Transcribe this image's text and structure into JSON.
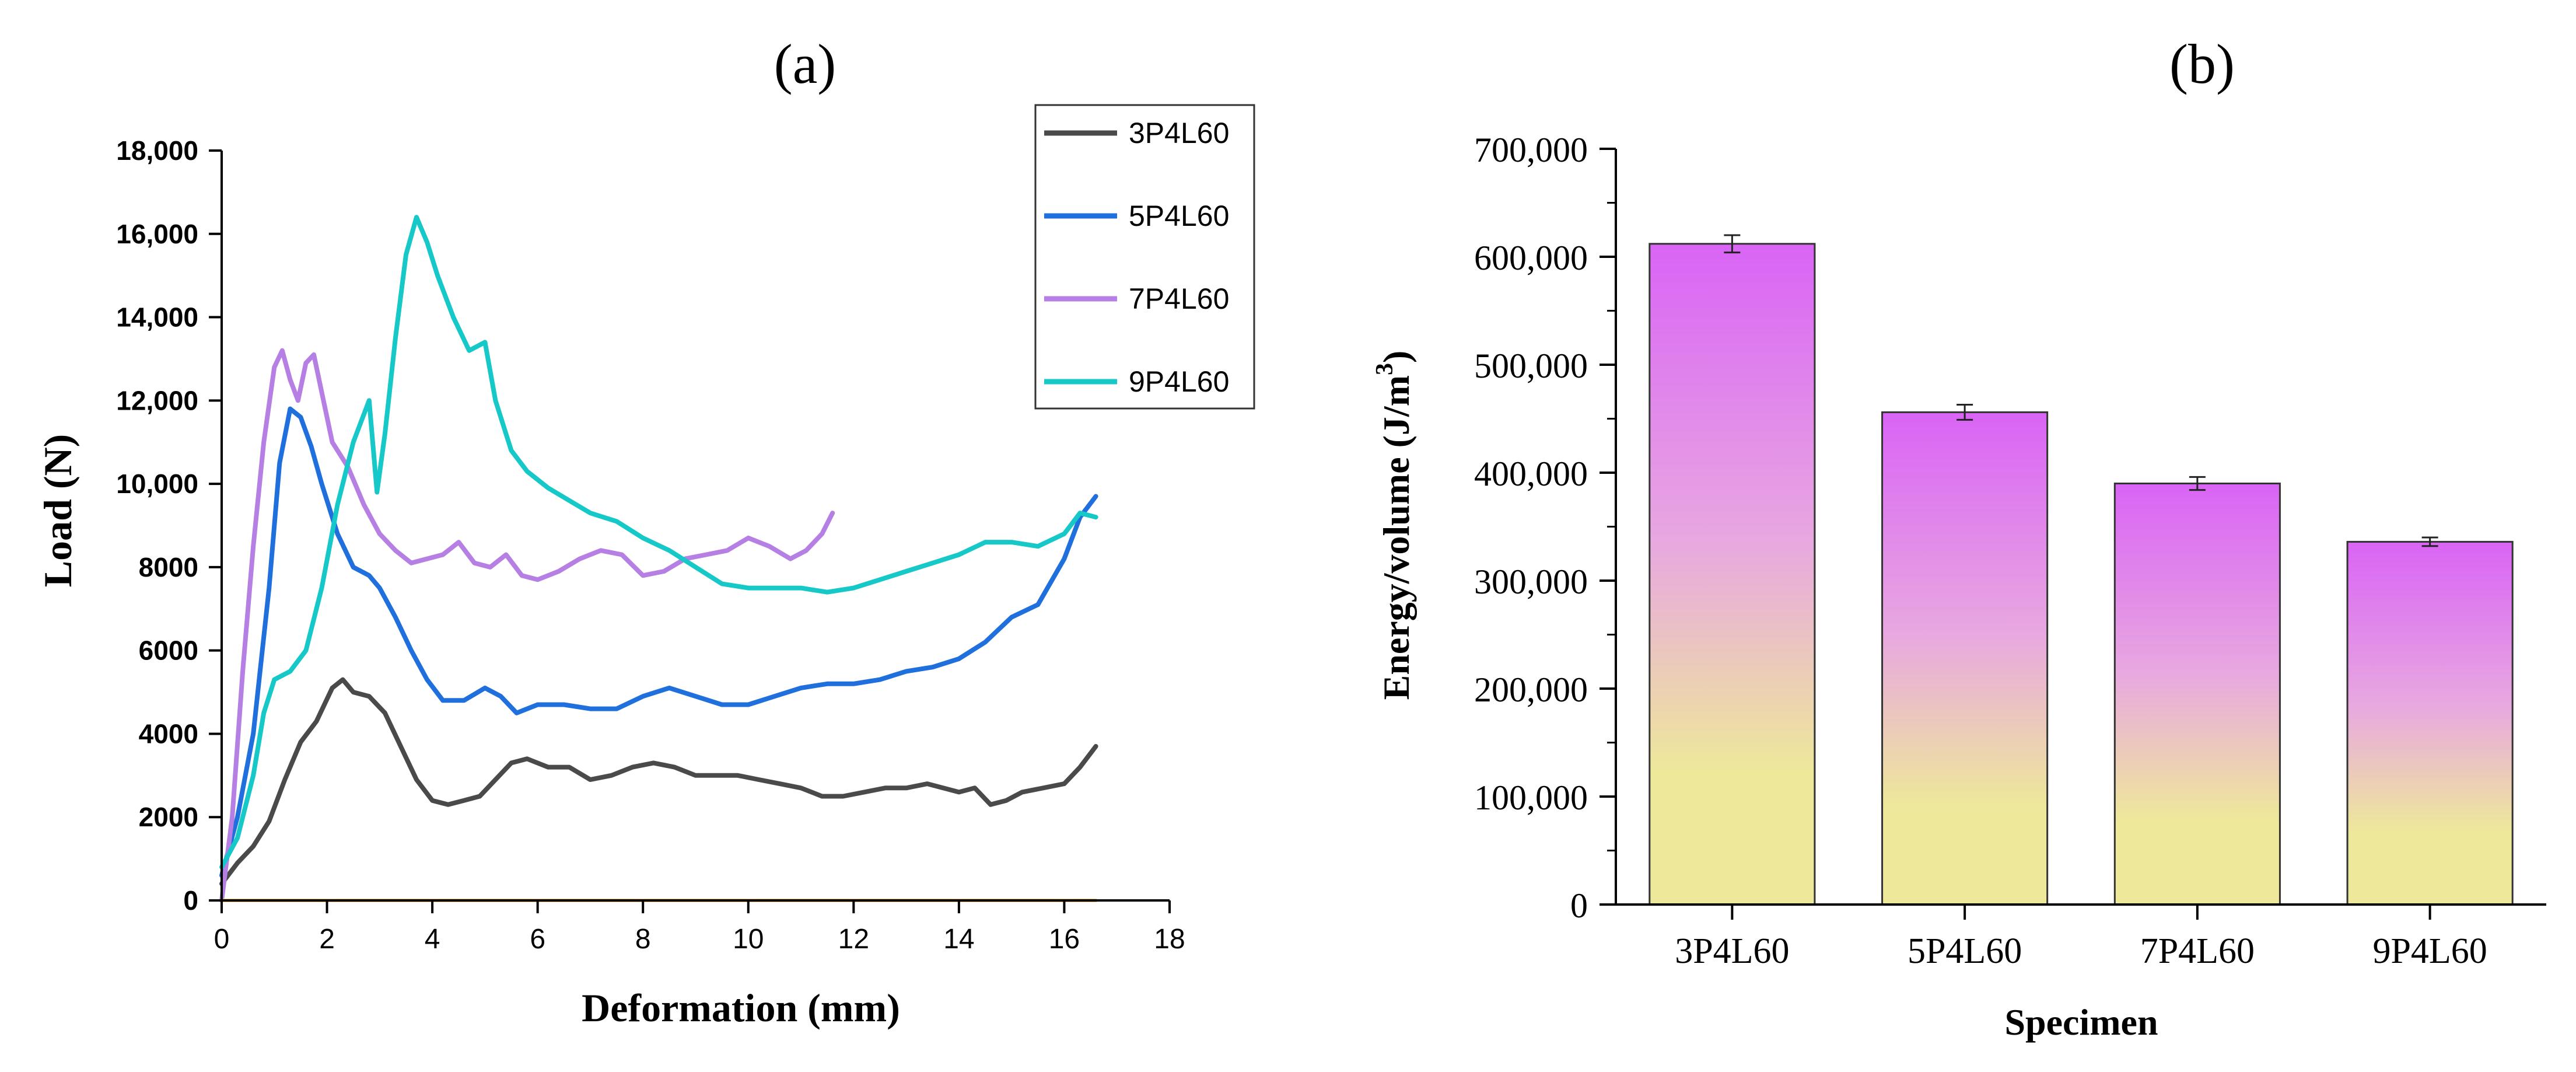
{
  "colors": {
    "3P4L60": "#4a4a4a",
    "5P4L60": "#1f6fdc",
    "7P4L60": "#b57fe3",
    "9P4L60": "#16c8c8",
    "baseline": "#e6b84a",
    "bar_top": "#d964f5",
    "bar_mid": "#e8a8e0",
    "bar_bottom": "#eee89a",
    "axis": "#000000"
  },
  "chart_data": [
    {
      "panel": "(a)",
      "type": "line",
      "xlabel": "Deformation (mm)",
      "ylabel": "Load (N)",
      "xlim": [
        0,
        18
      ],
      "ylim": [
        0,
        18000
      ],
      "x_ticks": [
        0,
        2,
        4,
        6,
        8,
        10,
        12,
        14,
        16,
        18
      ],
      "y_ticks": [
        0,
        2000,
        4000,
        6000,
        8000,
        10000,
        12000,
        14000,
        16000,
        18000
      ],
      "y_tick_labels": [
        "0",
        "2000",
        "4000",
        "6000",
        "8000",
        "10,000",
        "12,000",
        "14,000",
        "16,000",
        "18,000"
      ],
      "legend_position": "top-right",
      "series": [
        {
          "name": "3P4L60",
          "x": [
            0,
            0.3,
            0.6,
            0.9,
            1.2,
            1.5,
            1.8,
            2.1,
            2.3,
            2.5,
            2.8,
            3.1,
            3.4,
            3.7,
            4.0,
            4.3,
            4.6,
            4.9,
            5.2,
            5.5,
            5.8,
            6.2,
            6.6,
            7.0,
            7.4,
            7.8,
            8.2,
            8.6,
            9.0,
            9.4,
            9.8,
            10.2,
            10.6,
            11.0,
            11.4,
            11.8,
            12.2,
            12.6,
            13.0,
            13.4,
            13.7,
            14.0,
            14.3,
            14.6,
            14.9,
            15.2,
            15.6,
            16.0,
            16.3,
            16.6
          ],
          "y": [
            400,
            900,
            1300,
            1900,
            2900,
            3800,
            4300,
            5100,
            5300,
            5000,
            4900,
            4500,
            3700,
            2900,
            2400,
            2300,
            2400,
            2500,
            2900,
            3300,
            3400,
            3200,
            3200,
            2900,
            3000,
            3200,
            3300,
            3200,
            3000,
            3000,
            3000,
            2900,
            2800,
            2700,
            2500,
            2500,
            2600,
            2700,
            2700,
            2800,
            2700,
            2600,
            2700,
            2300,
            2400,
            2600,
            2700,
            2800,
            3200,
            3700
          ]
        },
        {
          "name": "5P4L60",
          "x": [
            0,
            0.3,
            0.6,
            0.9,
            1.1,
            1.3,
            1.5,
            1.7,
            1.9,
            2.2,
            2.5,
            2.8,
            3.0,
            3.3,
            3.6,
            3.9,
            4.2,
            4.6,
            5.0,
            5.3,
            5.6,
            6.0,
            6.5,
            7.0,
            7.5,
            8.0,
            8.5,
            9.0,
            9.5,
            10.0,
            10.5,
            11.0,
            11.5,
            12.0,
            12.5,
            13.0,
            13.5,
            14.0,
            14.5,
            15.0,
            15.5,
            16.0,
            16.3,
            16.6
          ],
          "y": [
            600,
            2000,
            4000,
            7500,
            10500,
            11800,
            11600,
            10900,
            10000,
            8800,
            8000,
            7800,
            7500,
            6800,
            6000,
            5300,
            4800,
            4800,
            5100,
            4900,
            4500,
            4700,
            4700,
            4600,
            4600,
            4900,
            5100,
            4900,
            4700,
            4700,
            4900,
            5100,
            5200,
            5200,
            5300,
            5500,
            5600,
            5800,
            6200,
            6800,
            7100,
            8200,
            9200,
            9700
          ]
        },
        {
          "name": "7P4L60",
          "x": [
            0,
            0.2,
            0.4,
            0.6,
            0.8,
            1.0,
            1.15,
            1.3,
            1.45,
            1.6,
            1.75,
            1.9,
            2.1,
            2.4,
            2.7,
            3.0,
            3.3,
            3.6,
            3.9,
            4.2,
            4.5,
            4.8,
            5.1,
            5.4,
            5.7,
            6.0,
            6.4,
            6.8,
            7.2,
            7.6,
            8.0,
            8.4,
            8.8,
            9.2,
            9.6,
            10.0,
            10.4,
            10.8,
            11.1,
            11.4,
            11.6
          ],
          "y": [
            0,
            2000,
            5500,
            8500,
            11000,
            12800,
            13200,
            12500,
            12000,
            12900,
            13100,
            12200,
            11000,
            10400,
            9500,
            8800,
            8400,
            8100,
            8200,
            8300,
            8600,
            8100,
            8000,
            8300,
            7800,
            7700,
            7900,
            8200,
            8400,
            8300,
            7800,
            7900,
            8200,
            8300,
            8400,
            8700,
            8500,
            8200,
            8400,
            8800,
            9300
          ]
        },
        {
          "name": "9P4L60",
          "x": [
            0,
            0.3,
            0.6,
            0.8,
            1.0,
            1.3,
            1.6,
            1.9,
            2.2,
            2.5,
            2.8,
            2.95,
            3.1,
            3.3,
            3.5,
            3.7,
            3.9,
            4.1,
            4.4,
            4.7,
            5.0,
            5.2,
            5.5,
            5.8,
            6.2,
            6.6,
            7.0,
            7.5,
            8.0,
            8.5,
            9.0,
            9.5,
            10.0,
            10.5,
            11.0,
            11.5,
            12.0,
            12.5,
            13.0,
            13.5,
            14.0,
            14.5,
            15.0,
            15.5,
            16.0,
            16.3,
            16.6
          ],
          "y": [
            800,
            1500,
            3000,
            4500,
            5300,
            5500,
            6000,
            7500,
            9500,
            11000,
            12000,
            9800,
            11200,
            13500,
            15500,
            16400,
            15800,
            15000,
            14000,
            13200,
            13400,
            12000,
            10800,
            10300,
            9900,
            9600,
            9300,
            9100,
            8700,
            8400,
            8000,
            7600,
            7500,
            7500,
            7500,
            7400,
            7500,
            7700,
            7900,
            8100,
            8300,
            8600,
            8600,
            8500,
            8800,
            9300,
            9200
          ]
        },
        {
          "name": "baseline",
          "x": [
            0,
            16.6
          ],
          "y": [
            0,
            0
          ]
        }
      ]
    },
    {
      "panel": "(b)",
      "type": "bar",
      "xlabel": "Specimen",
      "ylabel": "Energy/volume (J/m",
      "ylabel_sup": "3",
      "ylabel_close": ")",
      "ylim": [
        0,
        700000
      ],
      "y_ticks": [
        0,
        100000,
        200000,
        300000,
        400000,
        500000,
        600000,
        700000
      ],
      "y_tick_labels": [
        "0",
        "100,000",
        "200,000",
        "300,000",
        "400,000",
        "500,000",
        "600,000",
        "700,000"
      ],
      "categories": [
        "3P4L60",
        "5P4L60",
        "7P4L60",
        "9P4L60"
      ],
      "values": [
        612000,
        456000,
        390000,
        336000
      ],
      "errors": [
        8000,
        7000,
        6000,
        4000
      ]
    }
  ]
}
